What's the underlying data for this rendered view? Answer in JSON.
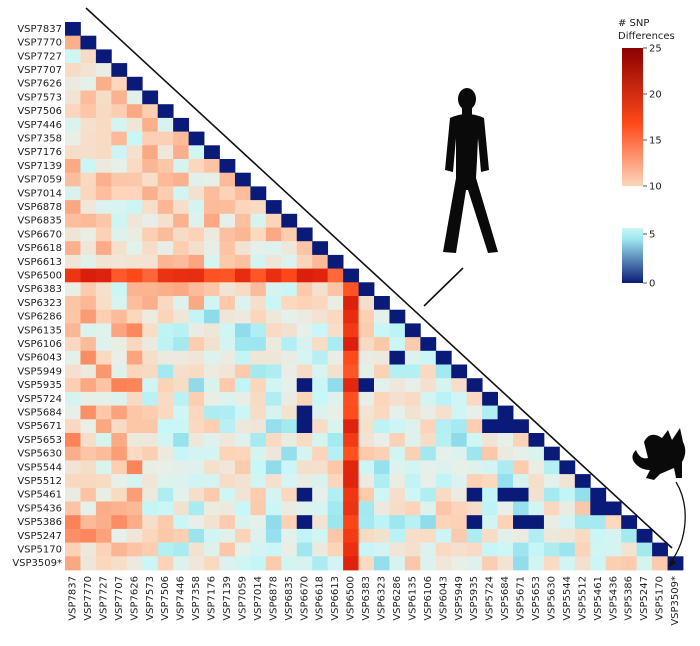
{
  "chart_data": {
    "type": "heatmap",
    "layout": "lower-triangle",
    "samples": [
      "VSP7837",
      "VSP7770",
      "VSP7727",
      "VSP7707",
      "VSP7626",
      "VSP7573",
      "VSP7506",
      "VSP7446",
      "VSP7358",
      "VSP7176",
      "VSP7139",
      "VSP7059",
      "VSP7014",
      "VSP6878",
      "VSP6835",
      "VSP6670",
      "VSP6618",
      "VSP6613",
      "VSP6500",
      "VSP6383",
      "VSP6323",
      "VSP6286",
      "VSP6135",
      "VSP6106",
      "VSP6043",
      "VSP5949",
      "VSP5935",
      "VSP5724",
      "VSP5684",
      "VSP5671",
      "VSP5653",
      "VSP5630",
      "VSP5544",
      "VSP5512",
      "VSP5461",
      "VSP5436",
      "VSP5386",
      "VSP5247",
      "VSP5170",
      "VSP3509*"
    ],
    "metric": "# SNP Differences",
    "human_samples_end": "VSP6323",
    "cat_sample": "VSP3509*",
    "high_difference_samples": [
      "VSP6500"
    ],
    "colorbar_high": {
      "min": 10,
      "max": 25,
      "ticks": [
        10,
        15,
        20,
        25
      ],
      "colors": [
        "#fcd6bb",
        "#ff4a1a",
        "#8c0000"
      ]
    },
    "colorbar_low": {
      "min": 0,
      "max": 5,
      "ticks": [
        0,
        5
      ],
      "colors": [
        "#0a1a78",
        "#9ee7ef",
        "#c8f7f7"
      ]
    },
    "legend_title_line1": "# SNP",
    "legend_title_line2": "Differences",
    "legend_placement": "top-right",
    "cell_value_ranges": {
      "typical": [
        4,
        12
      ],
      "VSP6500_row": [
        16,
        21
      ],
      "diagonal": 0
    },
    "zero_cells": [
      [
        26,
        15
      ],
      [
        28,
        15
      ],
      [
        29,
        15
      ],
      [
        34,
        15
      ],
      [
        36,
        15
      ],
      [
        26,
        19
      ],
      [
        24,
        21
      ],
      [
        34,
        26
      ],
      [
        36,
        26
      ],
      [
        29,
        27
      ],
      [
        29,
        28
      ],
      [
        34,
        28
      ],
      [
        34,
        29
      ],
      [
        36,
        29
      ],
      [
        35,
        34
      ],
      [
        36,
        30
      ]
    ],
    "silhouettes": [
      "human",
      "cat"
    ]
  }
}
